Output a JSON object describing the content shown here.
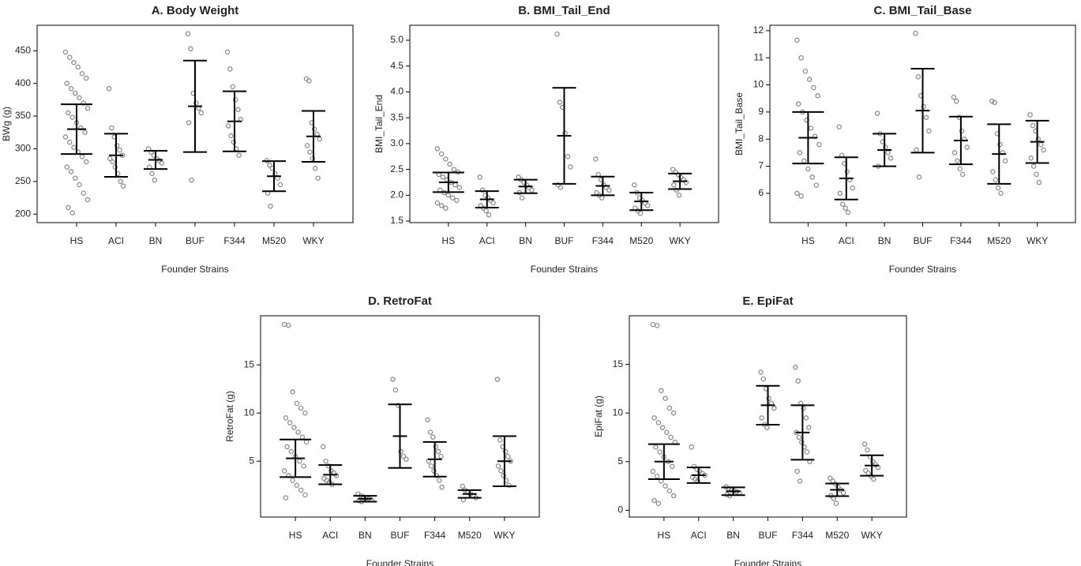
{
  "chart_data": [
    {
      "type": "strip",
      "title": "A. Body Weight",
      "xlabel": "Founder Strains",
      "ylabel": "BWg (g)",
      "categories": [
        "HS",
        "ACI",
        "BN",
        "BUF",
        "F344",
        "M520",
        "WKY"
      ],
      "values": [
        330,
        290,
        283,
        365,
        342,
        258,
        319
      ],
      "errors": [
        38,
        33,
        14,
        70,
        46,
        23,
        39
      ],
      "points": [
        [
          448,
          440,
          432,
          425,
          415,
          408,
          400,
          392,
          385,
          378,
          370,
          362,
          355,
          348,
          340,
          332,
          325,
          318,
          310,
          302,
          295,
          288,
          280,
          272,
          265,
          255,
          245,
          232,
          222,
          210,
          202
        ],
        [
          392,
          332,
          318,
          305,
          298,
          290,
          285,
          280,
          272,
          262,
          250,
          243
        ],
        [
          300,
          295,
          290,
          285,
          282,
          278,
          272,
          262,
          252
        ],
        [
          476,
          453,
          385,
          370,
          362,
          355,
          340,
          252
        ],
        [
          448,
          422,
          395,
          375,
          360,
          345,
          335,
          320,
          310,
          300,
          290
        ],
        [
          282,
          275,
          270,
          262,
          255,
          245,
          232,
          212
        ],
        [
          407,
          404,
          340,
          330,
          322,
          315,
          305,
          295,
          285,
          270,
          255
        ]
      ],
      "color": "#8c8c8c",
      "ylim": [
        187,
        489
      ],
      "yticks": [
        200,
        250,
        300,
        350,
        400,
        450
      ]
    },
    {
      "type": "strip",
      "title": "B. BMI_Tail_End",
      "xlabel": "Founder Strains",
      "ylabel": "BMI_Tail_End",
      "categories": [
        "HS",
        "ACI",
        "BN",
        "BUF",
        "F344",
        "M520",
        "WKY"
      ],
      "values": [
        2.25,
        1.92,
        2.17,
        3.15,
        2.18,
        1.88,
        2.27
      ],
      "errors": [
        0.19,
        0.16,
        0.13,
        0.93,
        0.18,
        0.17,
        0.15
      ],
      "points": [
        [
          2.9,
          2.8,
          2.7,
          2.6,
          2.5,
          2.45,
          2.4,
          2.35,
          2.3,
          2.25,
          2.2,
          2.15,
          2.1,
          2.05,
          2.0,
          1.95,
          1.9,
          1.85,
          1.8,
          1.75
        ],
        [
          2.35,
          2.1,
          2.0,
          1.95,
          1.9,
          1.85,
          1.8,
          1.75,
          1.7,
          1.62
        ],
        [
          2.35,
          2.3,
          2.25,
          2.2,
          2.15,
          2.1,
          2.05,
          1.95
        ],
        [
          5.12,
          3.8,
          3.7,
          3.2,
          2.75,
          2.55,
          2.2,
          2.15
        ],
        [
          2.7,
          2.4,
          2.3,
          2.2,
          2.15,
          2.1,
          2.05,
          2.0,
          1.95
        ],
        [
          2.2,
          2.05,
          1.95,
          1.9,
          1.85,
          1.8,
          1.75,
          1.7,
          1.65
        ],
        [
          2.5,
          2.45,
          2.4,
          2.35,
          2.3,
          2.25,
          2.2,
          2.1,
          2.0
        ]
      ],
      "color": "#8c8c8c",
      "ylim": [
        1.47,
        5.29
      ],
      "yticks": [
        1.5,
        {
          "value": 2,
          "label": "2.0"
        },
        2.5,
        {
          "value": 3,
          "label": "3.0"
        },
        3.5,
        {
          "value": 4,
          "label": "4.0"
        },
        4.5,
        {
          "value": 5,
          "label": "5.0"
        }
      ]
    },
    {
      "type": "strip",
      "title": "C. BMI_Tail_Base",
      "xlabel": "Founder Strains",
      "ylabel": "BMI_Tail_Base",
      "categories": [
        "HS",
        "ACI",
        "BN",
        "BUF",
        "F344",
        "M520",
        "WKY"
      ],
      "values": [
        8.05,
        6.55,
        7.6,
        9.05,
        7.95,
        7.45,
        7.9
      ],
      "errors": [
        0.95,
        0.78,
        0.6,
        1.55,
        0.88,
        1.1,
        0.78
      ],
      "points": [
        [
          11.65,
          11.0,
          10.5,
          10.2,
          9.9,
          9.6,
          9.3,
          9.0,
          8.7,
          8.4,
          8.1,
          7.8,
          7.5,
          7.2,
          6.9,
          6.6,
          6.3,
          6.0,
          5.9
        ],
        [
          8.45,
          7.4,
          7.1,
          6.8,
          6.5,
          6.2,
          6.0,
          5.6,
          5.45,
          5.3
        ],
        [
          8.95,
          8.2,
          7.9,
          7.7,
          7.5,
          7.3,
          7.0
        ],
        [
          11.9,
          10.3,
          9.6,
          9.2,
          8.8,
          8.3,
          7.6,
          6.6
        ],
        [
          9.55,
          9.4,
          8.8,
          8.3,
          8.0,
          7.7,
          7.5,
          7.2,
          6.9,
          6.7
        ],
        [
          9.4,
          9.35,
          8.2,
          7.8,
          7.5,
          7.2,
          6.8,
          6.5,
          6.2,
          6.0
        ],
        [
          8.9,
          8.5,
          8.3,
          8.0,
          7.8,
          7.6,
          7.3,
          7.0,
          6.7,
          6.4
        ]
      ],
      "color": "#8c8c8c",
      "ylim": [
        4.92,
        12.2
      ],
      "yticks": [
        6,
        7,
        8,
        9,
        10,
        11,
        12
      ]
    },
    {
      "type": "strip",
      "title": "D. RetroFat",
      "xlabel": "Founder Strains",
      "ylabel": "RetroFat (g)",
      "categories": [
        "HS",
        "ACI",
        "BN",
        "BUF",
        "F344",
        "M520",
        "WKY"
      ],
      "values": [
        5.3,
        3.6,
        1.1,
        7.6,
        5.2,
        1.6,
        5.0
      ],
      "errors": [
        1.95,
        1.0,
        0.3,
        3.3,
        1.8,
        0.4,
        2.6
      ],
      "points": [
        [
          19.2,
          19.1,
          12.2,
          11.0,
          10.5,
          10.0,
          9.5,
          9.0,
          8.5,
          8.0,
          7.5,
          7.0,
          6.5,
          6.0,
          5.5,
          5.0,
          4.5,
          4.0,
          3.5,
          3.0,
          2.5,
          2.0,
          1.5,
          1.2
        ],
        [
          6.5,
          5.0,
          4.5,
          4.0,
          3.8,
          3.5,
          3.2,
          3.0,
          2.8,
          2.6
        ],
        [
          1.6,
          1.4,
          1.3,
          1.2,
          1.1,
          1.0,
          0.9,
          0.8
        ],
        [
          13.5,
          12.4,
          10.8,
          6.0,
          5.5,
          5.2
        ],
        [
          9.3,
          8.0,
          7.5,
          6.5,
          6.0,
          5.5,
          5.0,
          4.5,
          4.0,
          3.5,
          3.0,
          2.3
        ],
        [
          2.4,
          2.0,
          1.8,
          1.6,
          1.4,
          1.2,
          1.0
        ],
        [
          13.5,
          7.2,
          6.5,
          6.0,
          5.5,
          5.0,
          4.5,
          4.0,
          3.5,
          3.0,
          2.5
        ]
      ],
      "color": "#8c8c8c",
      "ylim": [
        -0.8,
        20.1
      ],
      "yticks": [
        5,
        10,
        15
      ]
    },
    {
      "type": "strip",
      "title": "E. EpiFat",
      "xlabel": "Founder Strains",
      "ylabel": "EpiFat (g)",
      "categories": [
        "HS",
        "ACI",
        "BN",
        "BUF",
        "F344",
        "M520",
        "WKY"
      ],
      "values": [
        5.0,
        3.6,
        1.95,
        10.8,
        8.0,
        2.1,
        4.6
      ],
      "errors": [
        1.8,
        0.8,
        0.4,
        2.0,
        2.8,
        0.65,
        1.05
      ],
      "points": [
        [
          19.1,
          19.0,
          12.3,
          11.5,
          10.5,
          10.0,
          9.5,
          9.0,
          8.5,
          8.0,
          7.5,
          7.0,
          6.5,
          6.0,
          5.5,
          5.0,
          4.5,
          4.0,
          3.5,
          3.0,
          2.5,
          2.0,
          1.5,
          1.0,
          0.7
        ],
        [
          6.5,
          4.5,
          4.2,
          4.0,
          3.8,
          3.6,
          3.4,
          3.2,
          3.0
        ],
        [
          2.4,
          2.2,
          2.1,
          2.0,
          1.9,
          1.8,
          1.6,
          1.5
        ],
        [
          14.2,
          13.5,
          12.5,
          11.5,
          11.0,
          10.5,
          9.5,
          8.8,
          8.5
        ],
        [
          14.7,
          13.3,
          11.0,
          10.5,
          9.5,
          8.5,
          8.0,
          7.5,
          7.0,
          6.5,
          6.0,
          5.0,
          4.0,
          3.0
        ],
        [
          3.3,
          3.0,
          2.7,
          2.4,
          2.1,
          1.8,
          1.5,
          1.2,
          0.7
        ],
        [
          6.8,
          6.2,
          5.5,
          5.0,
          4.7,
          4.4,
          4.1,
          3.8,
          3.5,
          3.2
        ]
      ],
      "color": "#8c8c8c",
      "ylim": [
        -0.7,
        20
      ],
      "yticks": [
        0,
        5,
        10,
        15
      ]
    }
  ]
}
